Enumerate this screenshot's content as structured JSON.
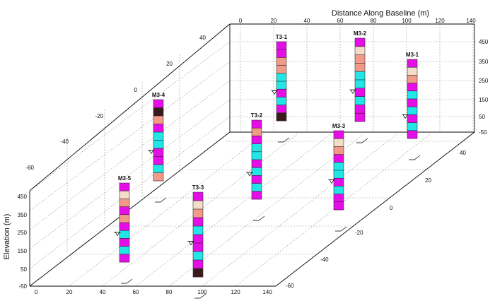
{
  "axes": {
    "x_title": "Distance Along Baseline (m)",
    "y_title": "Elevation (m)",
    "x_ticks_bottom": [
      "0",
      "20",
      "40",
      "60",
      "80",
      "100",
      "120",
      "140"
    ],
    "x_ticks_top": [
      "0",
      "20",
      "40",
      "60",
      "80",
      "100",
      "120",
      "140"
    ],
    "elevation_ticks_left": [
      "450",
      "350",
      "250",
      "150",
      "50",
      "-50"
    ],
    "elevation_ticks_right": [
      "450",
      "350",
      "250",
      "150",
      "50",
      "-50"
    ],
    "depth_ticks_left": [
      "40",
      "20",
      "0",
      "-20",
      "-40",
      "-60"
    ],
    "depth_ticks_right": [
      "40",
      "20",
      "0",
      "-20",
      "-40",
      "-60"
    ]
  },
  "colors": {
    "magenta": "#e60ee6",
    "cyan": "#22e6e6",
    "salmon": "#f29a88",
    "sand": "#f3dcc8",
    "dark": "#3a1a1a",
    "grid": "#9a9a9a",
    "frame": "#000000"
  },
  "wells": [
    {
      "name": "M3-5",
      "layers": [
        "magenta",
        "sand",
        "salmon",
        "magenta",
        "salmon",
        "magenta",
        "cyan",
        "magenta",
        "cyan",
        "magenta"
      ]
    },
    {
      "name": "M3-4",
      "layers": [
        "magenta",
        "dark",
        "salmon",
        "magenta",
        "cyan",
        "cyan",
        "magenta",
        "magenta",
        "cyan",
        "salmon"
      ]
    },
    {
      "name": "T3-3",
      "layers": [
        "magenta",
        "sand",
        "salmon",
        "magenta",
        "cyan",
        "magenta",
        "magenta",
        "cyan",
        "magenta",
        "dark"
      ]
    },
    {
      "name": "T3-2",
      "layers": [
        "magenta",
        "salmon",
        "magenta",
        "cyan",
        "cyan",
        "magenta",
        "cyan",
        "magenta",
        "cyan",
        "magenta"
      ]
    },
    {
      "name": "T3-1",
      "layers": [
        "magenta",
        "magenta",
        "salmon",
        "salmon",
        "cyan",
        "cyan",
        "magenta",
        "cyan",
        "magenta",
        "dark"
      ]
    },
    {
      "name": "M3-3",
      "layers": [
        "magenta",
        "sand",
        "salmon",
        "magenta",
        "cyan",
        "cyan",
        "magenta",
        "cyan",
        "magenta",
        "magenta"
      ]
    },
    {
      "name": "M3-2",
      "layers": [
        "magenta",
        "sand",
        "salmon",
        "salmon",
        "cyan",
        "cyan",
        "magenta",
        "cyan",
        "magenta",
        "magenta"
      ]
    },
    {
      "name": "M3-1",
      "layers": [
        "magenta",
        "sand",
        "salmon",
        "magenta",
        "cyan",
        "magenta",
        "cyan",
        "magenta",
        "cyan",
        "magenta"
      ]
    }
  ]
}
